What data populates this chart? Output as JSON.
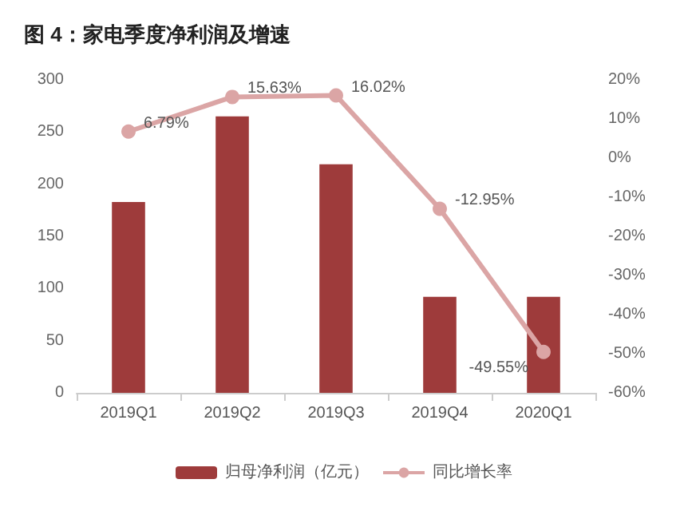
{
  "chart_data": {
    "type": "bar",
    "title": "图 4：家电季度净利润及增速",
    "categories": [
      "2019Q1",
      "2019Q2",
      "2019Q3",
      "2019Q4",
      "2020Q1"
    ],
    "series": [
      {
        "name": "归母净利润（亿元）",
        "color": "#9e3b3b",
        "values": [
          183,
          265,
          219,
          92,
          92
        ]
      },
      {
        "name": "同比增长率",
        "type": "line",
        "axis": "y2",
        "color": "#dba5a5",
        "marker": "circle",
        "values": [
          6.79,
          15.63,
          16.02,
          -12.95,
          -49.55
        ],
        "value_labels": [
          "6.79%",
          "15.63%",
          "16.02%",
          "-12.95%",
          "-49.55%"
        ]
      }
    ],
    "ylim": [
      0,
      300
    ],
    "yticks": [
      0,
      50,
      100,
      150,
      200,
      250,
      300
    ],
    "y2lim": [
      -60,
      20
    ],
    "y2ticks": [
      {
        "value": -60,
        "label": "-60%"
      },
      {
        "value": -50,
        "label": "-50%"
      },
      {
        "value": -40,
        "label": "-40%"
      },
      {
        "value": -30,
        "label": "-30%"
      },
      {
        "value": -20,
        "label": "-20%"
      },
      {
        "value": -10,
        "label": "-10%"
      },
      {
        "value": 0,
        "label": "0%"
      },
      {
        "value": 10,
        "label": "10%"
      },
      {
        "value": 20,
        "label": "20%"
      }
    ],
    "grid": false,
    "legend": "bottom"
  }
}
